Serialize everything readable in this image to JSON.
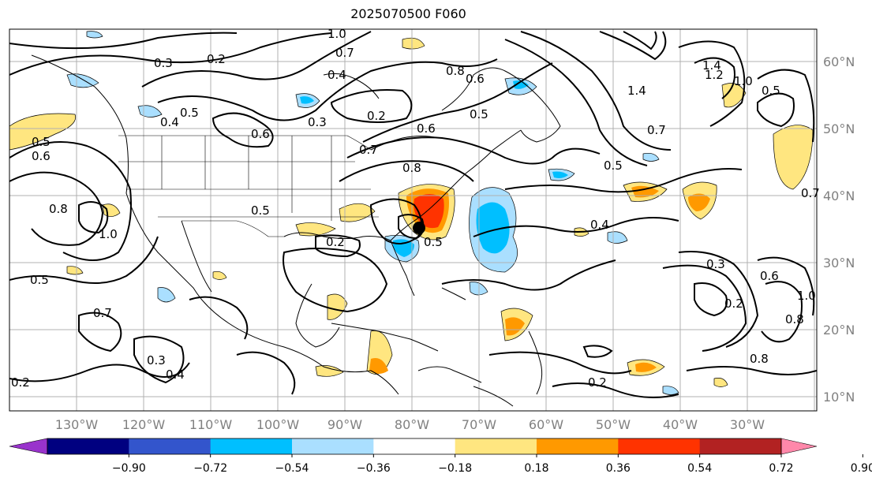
{
  "title": "2025070500 F060",
  "map": {
    "lon_labels": [
      "130°W",
      "120°W",
      "110°W",
      "100°W",
      "90°W",
      "80°W",
      "70°W",
      "60°W",
      "50°W",
      "40°W",
      "30°W"
    ],
    "lat_labels": [
      "60°N",
      "50°N",
      "40°N",
      "30°N",
      "20°N",
      "10°N"
    ],
    "contour_labels": [
      "0.2",
      "0.3",
      "0.4",
      "0.5",
      "0.6",
      "0.7",
      "0.8",
      "1.0",
      "1.2",
      "1.4"
    ],
    "storm_marker": {
      "lon": -78,
      "lat": 35
    }
  },
  "colorbar": {
    "ticks": [
      "−0.90",
      "−0.72",
      "−0.54",
      "−0.36",
      "−0.18",
      "0.18",
      "0.36",
      "0.54",
      "0.72",
      "0.90"
    ],
    "colors": [
      "#9933cc",
      "#000080",
      "#3355cc",
      "#00bfff",
      "#aadfff",
      "#ffffff",
      "#ffe680",
      "#ff9900",
      "#ff3300",
      "#b22222",
      "#ff88aa"
    ]
  }
}
